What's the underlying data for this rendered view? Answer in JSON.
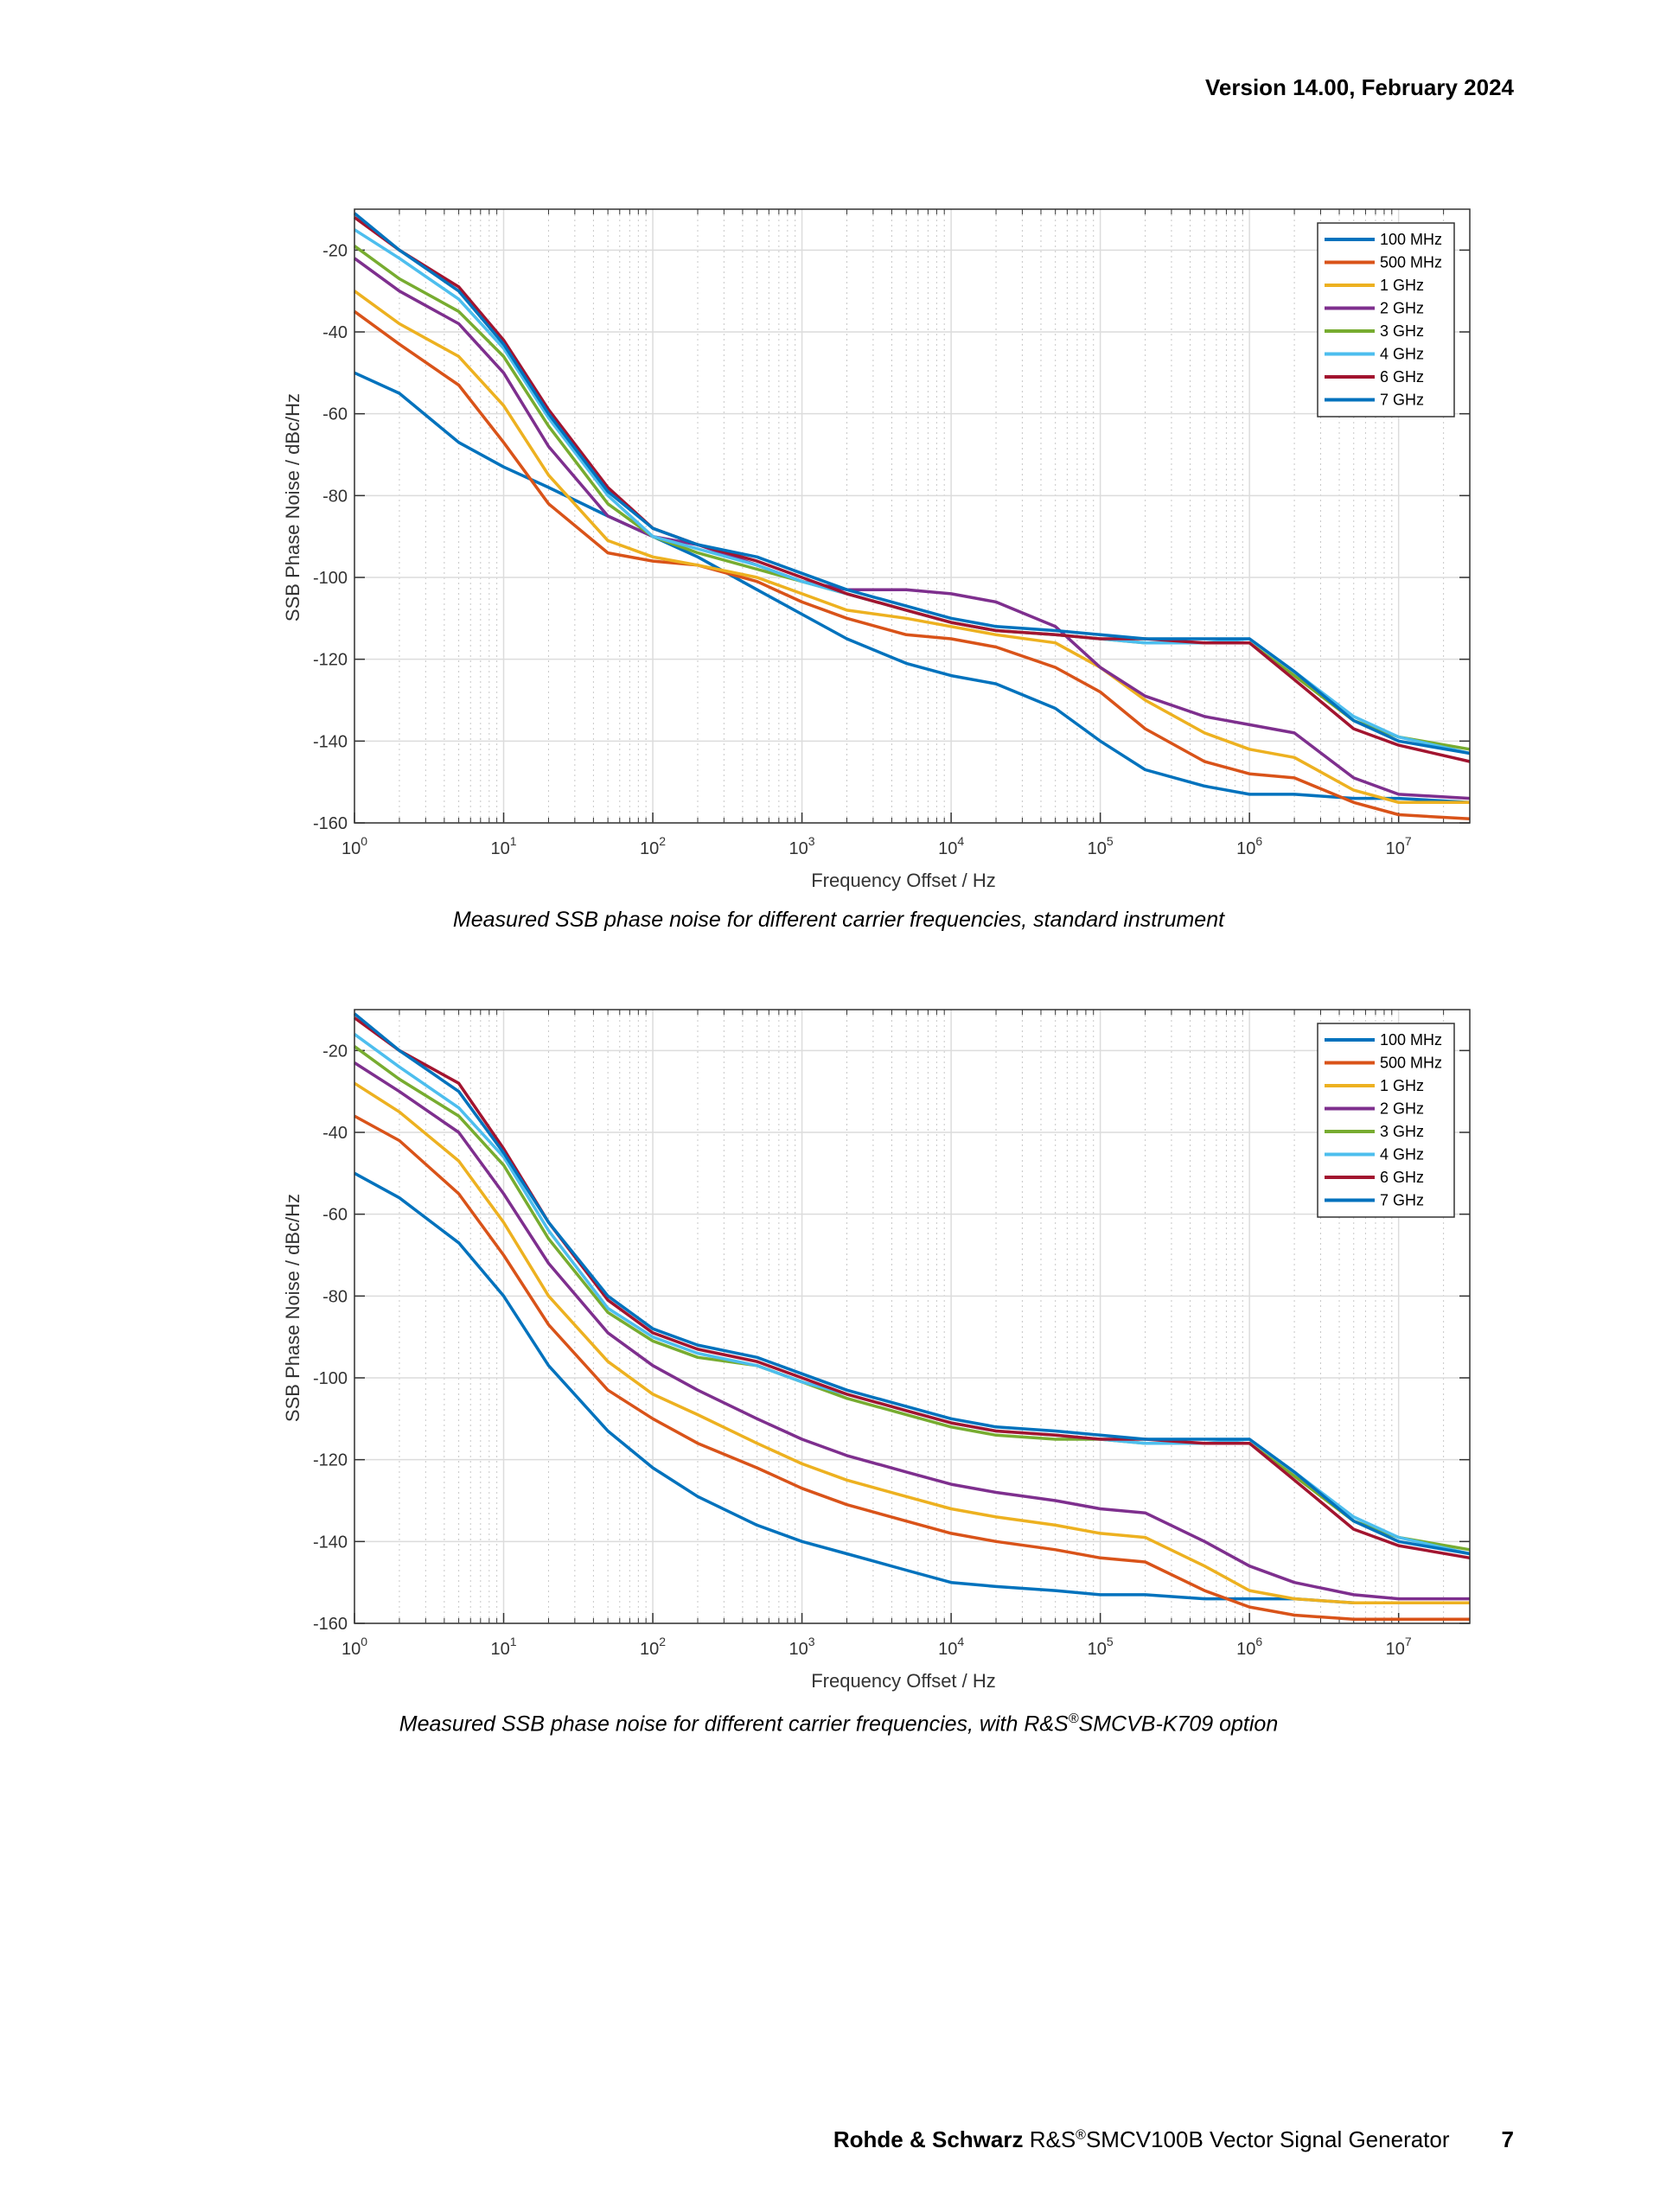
{
  "header": {
    "version": "Version 14.00, February 2024"
  },
  "colors": {
    "100 MHz": "#0072BD",
    "500 MHz": "#D95319",
    "1 GHz": "#EDB120",
    "2 GHz": "#7E2F8E",
    "3 GHz": "#77AC30",
    "4 GHz": "#4DBEEE",
    "6 GHz": "#A2142F",
    "7 GHz": "#0072BD"
  },
  "captions": [
    {
      "text": "Measured SSB phase noise for different carrier frequencies, standard instrument"
    },
    {
      "pre": "Measured SSB phase noise for different carrier frequencies, with R&S",
      "sup": "®",
      "post": "SMCVB-K709 option"
    }
  ],
  "footer": {
    "brand": "Rohde & Schwarz",
    "product_pre": "R&S",
    "product_sup": "®",
    "product_post": "SMCV100B Vector Signal Generator",
    "page": "7"
  },
  "chart_data": [
    {
      "type": "line",
      "xlabel": "Frequency Offset / Hz",
      "ylabel": "SSB Phase Noise / dBc/Hz",
      "xscale": "log",
      "xlim": [
        1,
        30000000
      ],
      "ylim": [
        -160,
        -10
      ],
      "yticks": [
        -20,
        -40,
        -60,
        -80,
        -100,
        -120,
        -140,
        -160
      ],
      "xtick_labels": [
        "10^0",
        "10^1",
        "10^2",
        "10^3",
        "10^4",
        "10^5",
        "10^6",
        "10^7"
      ],
      "grid": true,
      "legend": "top-right",
      "x": [
        1,
        2,
        5,
        10,
        20,
        50,
        100,
        200,
        500,
        1000,
        2000,
        5000,
        10000,
        20000,
        50000,
        100000,
        200000,
        500000,
        1000000,
        2000000,
        5000000,
        10000000,
        30000000
      ],
      "series": [
        {
          "name": "100 MHz",
          "values": [
            -50,
            -55,
            -67,
            -73,
            -78,
            -85,
            -90,
            -95,
            -103,
            -109,
            -115,
            -121,
            -124,
            -126,
            -132,
            -140,
            -147,
            -151,
            -153,
            -153,
            -154,
            -154,
            -155
          ]
        },
        {
          "name": "500 MHz",
          "values": [
            -35,
            -43,
            -53,
            -67,
            -82,
            -94,
            -96,
            -97,
            -101,
            -106,
            -110,
            -114,
            -115,
            -117,
            -122,
            -128,
            -137,
            -145,
            -148,
            -149,
            -155,
            -158,
            -159
          ]
        },
        {
          "name": "1 GHz",
          "values": [
            -30,
            -38,
            -46,
            -58,
            -75,
            -91,
            -95,
            -97,
            -100,
            -104,
            -108,
            -110,
            -112,
            -114,
            -116,
            -122,
            -130,
            -138,
            -142,
            -144,
            -152,
            -155,
            -155
          ]
        },
        {
          "name": "2 GHz",
          "values": [
            -22,
            -30,
            -38,
            -50,
            -68,
            -85,
            -90,
            -92,
            -97,
            -101,
            -103,
            -103,
            -104,
            -106,
            -112,
            -122,
            -129,
            -134,
            -136,
            -138,
            -149,
            -153,
            -154
          ]
        },
        {
          "name": "3 GHz",
          "values": [
            -19,
            -27,
            -35,
            -46,
            -63,
            -82,
            -90,
            -94,
            -98,
            -101,
            -104,
            -108,
            -111,
            -113,
            -114,
            -115,
            -116,
            -116,
            -116,
            -124,
            -135,
            -139,
            -142
          ]
        },
        {
          "name": "4 GHz",
          "values": [
            -15,
            -22,
            -32,
            -44,
            -61,
            -80,
            -90,
            -93,
            -97,
            -101,
            -104,
            -108,
            -111,
            -113,
            -114,
            -115,
            -116,
            -116,
            -115,
            -123,
            -134,
            -139,
            -143
          ]
        },
        {
          "name": "6 GHz",
          "values": [
            -12,
            -20,
            -29,
            -42,
            -59,
            -78,
            -88,
            -92,
            -96,
            -100,
            -104,
            -108,
            -111,
            -113,
            -114,
            -115,
            -115,
            -116,
            -116,
            -125,
            -137,
            -141,
            -145
          ]
        },
        {
          "name": "7 GHz",
          "values": [
            -11,
            -20,
            -30,
            -43,
            -60,
            -79,
            -88,
            -92,
            -95,
            -99,
            -103,
            -107,
            -110,
            -112,
            -113,
            -114,
            -115,
            -115,
            -115,
            -123,
            -135,
            -140,
            -143
          ]
        }
      ]
    },
    {
      "type": "line",
      "xlabel": "Frequency Offset / Hz",
      "ylabel": "SSB Phase Noise / dBc/Hz",
      "xscale": "log",
      "xlim": [
        1,
        30000000
      ],
      "ylim": [
        -160,
        -10
      ],
      "yticks": [
        -20,
        -40,
        -60,
        -80,
        -100,
        -120,
        -140,
        -160
      ],
      "xtick_labels": [
        "10^0",
        "10^1",
        "10^2",
        "10^3",
        "10^4",
        "10^5",
        "10^6",
        "10^7"
      ],
      "grid": true,
      "legend": "top-right",
      "x": [
        1,
        2,
        5,
        10,
        20,
        50,
        100,
        200,
        500,
        1000,
        2000,
        5000,
        10000,
        20000,
        50000,
        100000,
        200000,
        500000,
        1000000,
        2000000,
        5000000,
        10000000,
        30000000
      ],
      "series": [
        {
          "name": "100 MHz",
          "values": [
            -50,
            -56,
            -67,
            -80,
            -97,
            -113,
            -122,
            -129,
            -136,
            -140,
            -143,
            -147,
            -150,
            -151,
            -152,
            -153,
            -153,
            -154,
            -154,
            -154,
            -155,
            -155,
            -155
          ]
        },
        {
          "name": "500 MHz",
          "values": [
            -36,
            -42,
            -55,
            -70,
            -87,
            -103,
            -110,
            -116,
            -122,
            -127,
            -131,
            -135,
            -138,
            -140,
            -142,
            -144,
            -145,
            -152,
            -156,
            -158,
            -159,
            -159,
            -159
          ]
        },
        {
          "name": "1 GHz",
          "values": [
            -28,
            -35,
            -47,
            -62,
            -80,
            -96,
            -104,
            -109,
            -116,
            -121,
            -125,
            -129,
            -132,
            -134,
            -136,
            -138,
            -139,
            -146,
            -152,
            -154,
            -155,
            -155,
            -155
          ]
        },
        {
          "name": "2 GHz",
          "values": [
            -23,
            -30,
            -40,
            -55,
            -72,
            -89,
            -97,
            -103,
            -110,
            -115,
            -119,
            -123,
            -126,
            -128,
            -130,
            -132,
            -133,
            -140,
            -146,
            -150,
            -153,
            -154,
            -154
          ]
        },
        {
          "name": "3 GHz",
          "values": [
            -19,
            -27,
            -36,
            -48,
            -66,
            -84,
            -91,
            -95,
            -97,
            -101,
            -105,
            -109,
            -112,
            -114,
            -115,
            -115,
            -116,
            -116,
            -116,
            -124,
            -135,
            -139,
            -142
          ]
        },
        {
          "name": "4 GHz",
          "values": [
            -16,
            -24,
            -34,
            -46,
            -64,
            -83,
            -90,
            -94,
            -97,
            -101,
            -104,
            -108,
            -111,
            -113,
            -114,
            -115,
            -116,
            -116,
            -115,
            -123,
            -134,
            -139,
            -143
          ]
        },
        {
          "name": "6 GHz",
          "values": [
            -12,
            -20,
            -28,
            -44,
            -62,
            -81,
            -89,
            -93,
            -96,
            -100,
            -104,
            -108,
            -111,
            -113,
            -114,
            -115,
            -115,
            -116,
            -116,
            -125,
            -137,
            -141,
            -144
          ]
        },
        {
          "name": "7 GHz",
          "values": [
            -11,
            -20,
            -30,
            -45,
            -62,
            -80,
            -88,
            -92,
            -95,
            -99,
            -103,
            -107,
            -110,
            -112,
            -113,
            -114,
            -115,
            -115,
            -115,
            -123,
            -135,
            -140,
            -143
          ]
        }
      ]
    }
  ]
}
